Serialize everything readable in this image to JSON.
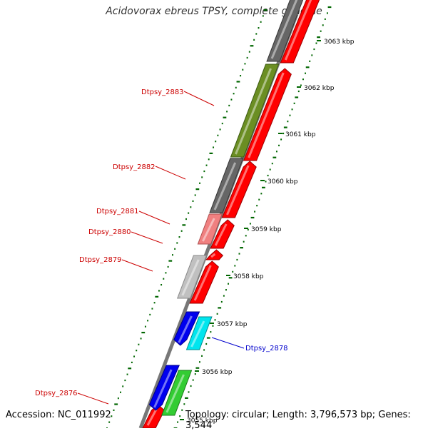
{
  "title": "Acidovorax ebreus TPSY, complete genome",
  "accession": "Accession: NC_011992",
  "topology": "Topology: circular; Length: 3,796,573 bp; Genes: 3,544",
  "colors": {
    "backbone": "#777777",
    "scale_ticks": "#006600",
    "forward_gene": "#ff0000",
    "label_red": "#cc0000",
    "label_blue": "#0000cc"
  },
  "scale_labels": [
    "3063 kbp",
    "3062 kbp",
    "3061 kbp",
    "3060 kbp",
    "3059 kbp",
    "3058 kbp",
    "3057 kbp",
    "3056 kbp",
    "3055 kbp"
  ],
  "gene_labels": [
    {
      "text": "Dtpsy_2883",
      "color": "#cc0000"
    },
    {
      "text": "Dtpsy_2882",
      "color": "#cc0000"
    },
    {
      "text": "Dtpsy_2881",
      "color": "#cc0000"
    },
    {
      "text": "Dtpsy_2880",
      "color": "#cc0000"
    },
    {
      "text": "Dtpsy_2879",
      "color": "#cc0000"
    },
    {
      "text": "Dtpsy_2878",
      "color": "#0000cc"
    },
    {
      "text": "Dtpsy_2876",
      "color": "#cc0000"
    }
  ]
}
